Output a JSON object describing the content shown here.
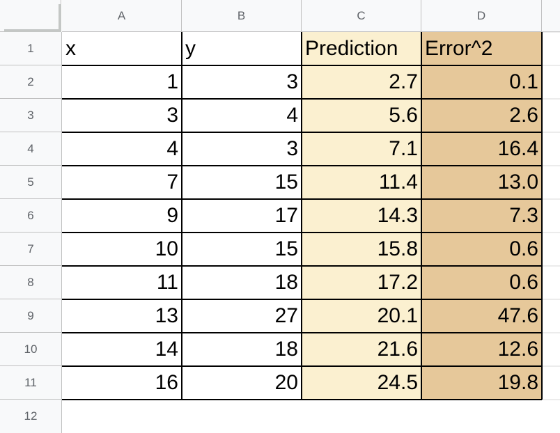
{
  "columns": [
    "A",
    "B",
    "C",
    "D"
  ],
  "rows": [
    "1",
    "2",
    "3",
    "4",
    "5",
    "6",
    "7",
    "8",
    "9",
    "10",
    "11",
    "12"
  ],
  "header": [
    "x",
    "y",
    "Prediction",
    "Error^2"
  ],
  "data": [
    [
      "1",
      "3",
      "2.7",
      "0.1"
    ],
    [
      "3",
      "4",
      "5.6",
      "2.6"
    ],
    [
      "4",
      "3",
      "7.1",
      "16.4"
    ],
    [
      "7",
      "15",
      "11.4",
      "13.0"
    ],
    [
      "9",
      "17",
      "14.3",
      "7.3"
    ],
    [
      "10",
      "15",
      "15.8",
      "0.6"
    ],
    [
      "11",
      "18",
      "17.2",
      "0.6"
    ],
    [
      "13",
      "27",
      "20.1",
      "47.6"
    ],
    [
      "14",
      "18",
      "21.6",
      "12.6"
    ],
    [
      "16",
      "20",
      "24.5",
      "19.8"
    ]
  ],
  "colors": {
    "prediction_fill": "#fbf0d0",
    "error_fill": "#e6c89a",
    "header_bg": "#f8f9fa"
  }
}
